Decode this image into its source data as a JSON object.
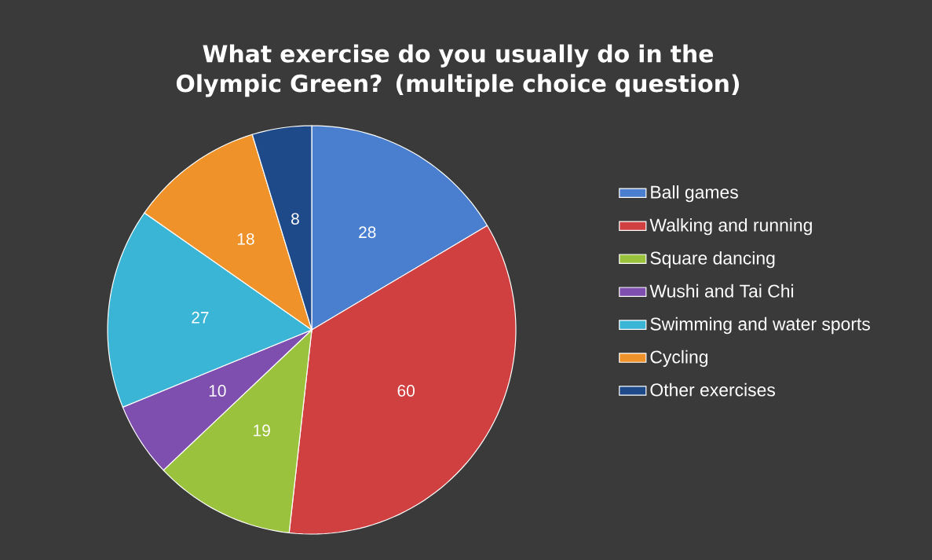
{
  "chart_data": {
    "type": "pie",
    "title": "What exercise do you usually do in the Olympic Green? (multiple choice question)",
    "categories": [
      "Ball games",
      "Walking and running",
      "Square dancing",
      "Wushi and Tai Chi",
      "Swimming and water sports",
      "Cycling",
      "Other exercises"
    ],
    "values": [
      28,
      60,
      19,
      10,
      27,
      18,
      8
    ],
    "colors": [
      "#4a7fd0",
      "#d04040",
      "#9ac23c",
      "#7f4fb0",
      "#3ab5d5",
      "#f0922a",
      "#1f4a8a"
    ],
    "data_labels": true,
    "legend": "right"
  }
}
